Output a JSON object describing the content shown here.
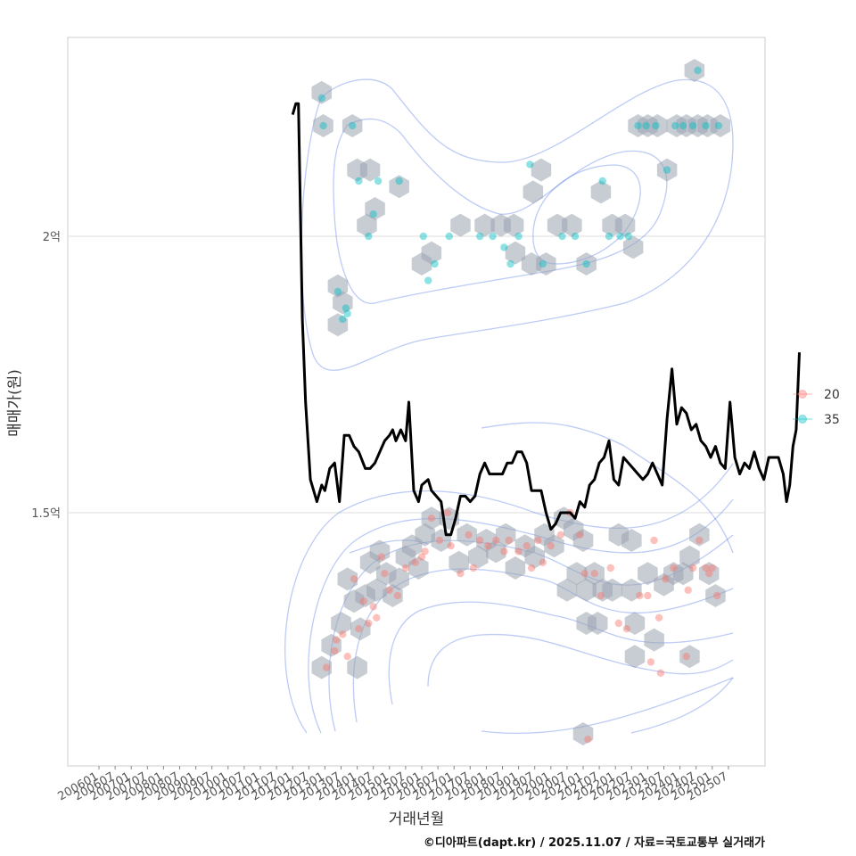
{
  "caption": "©디아파트(dapt.kr) / 2025.11.07 / 자료=국토교통부 실거래가",
  "chart_data": {
    "type": "scatter",
    "xlabel": "거래년월",
    "ylabel": "매매가(원)",
    "grid": true,
    "legend_position": "right",
    "x_categories": [
      "200601",
      "200607",
      "200701",
      "200707",
      "200801",
      "200807",
      "200901",
      "200907",
      "201001",
      "201007",
      "201101",
      "201107",
      "201201",
      "201207",
      "201301",
      "201307",
      "201401",
      "201407",
      "201501",
      "201507",
      "201601",
      "201607",
      "201701",
      "201707",
      "201801",
      "201807",
      "201901",
      "201907",
      "202001",
      "202007",
      "202101",
      "202107",
      "202201",
      "202207",
      "202301",
      "202307",
      "202401",
      "202407",
      "202501",
      "202507"
    ],
    "y_ticks": [
      {
        "value": 1.5,
        "label": "1.5억"
      },
      {
        "value": 2.0,
        "label": "2억"
      }
    ],
    "ylim": [
      1.06,
      2.38
    ],
    "legend": [
      {
        "name": "20",
        "color": "#F8766D"
      },
      {
        "name": "35",
        "color": "#00BFC4"
      }
    ],
    "series": [
      {
        "name": "20",
        "color": "#F8766D",
        "points": [
          [
            2013.05,
            1.22
          ],
          [
            2013.3,
            1.25
          ],
          [
            2013.35,
            1.27
          ],
          [
            2013.55,
            1.28
          ],
          [
            2013.7,
            1.24
          ],
          [
            2013.9,
            1.38
          ],
          [
            2014.05,
            1.29
          ],
          [
            2014.2,
            1.34
          ],
          [
            2014.35,
            1.3
          ],
          [
            2014.5,
            1.33
          ],
          [
            2014.6,
            1.31
          ],
          [
            2014.75,
            1.42
          ],
          [
            2014.85,
            1.39
          ],
          [
            2015.0,
            1.36
          ],
          [
            2015.25,
            1.35
          ],
          [
            2015.5,
            1.4
          ],
          [
            2015.8,
            1.41
          ],
          [
            2016.0,
            1.42
          ],
          [
            2016.1,
            1.43
          ],
          [
            2016.3,
            1.49
          ],
          [
            2016.55,
            1.45
          ],
          [
            2016.8,
            1.5
          ],
          [
            2016.9,
            1.44
          ],
          [
            2017.2,
            1.39
          ],
          [
            2017.45,
            1.46
          ],
          [
            2017.6,
            1.4
          ],
          [
            2017.8,
            1.45
          ],
          [
            2018.05,
            1.44
          ],
          [
            2018.3,
            1.45
          ],
          [
            2018.55,
            1.43
          ],
          [
            2018.7,
            1.45
          ],
          [
            2019.0,
            1.43
          ],
          [
            2019.25,
            1.44
          ],
          [
            2019.4,
            1.4
          ],
          [
            2019.6,
            1.45
          ],
          [
            2019.75,
            1.41
          ],
          [
            2020.0,
            1.44
          ],
          [
            2020.3,
            1.46
          ],
          [
            2020.6,
            1.5
          ],
          [
            2020.9,
            1.46
          ],
          [
            2021.05,
            1.39
          ],
          [
            2021.35,
            1.39
          ],
          [
            2021.55,
            1.35
          ],
          [
            2021.85,
            1.4
          ],
          [
            2022.1,
            1.3
          ],
          [
            2022.35,
            1.29
          ],
          [
            2022.75,
            1.35
          ],
          [
            2023.0,
            1.35
          ],
          [
            2023.2,
            1.45
          ],
          [
            2023.35,
            1.31
          ],
          [
            2023.55,
            1.38
          ],
          [
            2023.8,
            1.4
          ],
          [
            2024.25,
            1.36
          ],
          [
            2024.4,
            1.4
          ],
          [
            2024.6,
            1.45
          ],
          [
            2024.8,
            1.4
          ],
          [
            2025.0,
            1.4
          ],
          [
            2025.15,
            1.35
          ],
          [
            2021.15,
            1.09
          ],
          [
            2023.1,
            1.23
          ],
          [
            2023.4,
            1.21
          ],
          [
            2024.2,
            1.24
          ],
          [
            2024.9,
            1.39
          ]
        ]
      },
      {
        "name": "35",
        "color": "#00BFC4",
        "points": [
          [
            2012.9,
            2.25
          ],
          [
            2012.95,
            2.2
          ],
          [
            2013.4,
            1.9
          ],
          [
            2013.55,
            1.85
          ],
          [
            2013.65,
            1.87
          ],
          [
            2013.7,
            1.86
          ],
          [
            2013.85,
            2.2
          ],
          [
            2014.05,
            2.1
          ],
          [
            2014.35,
            2.0
          ],
          [
            2014.5,
            2.04
          ],
          [
            2014.65,
            2.1
          ],
          [
            2015.3,
            2.1
          ],
          [
            2016.05,
            2.0
          ],
          [
            2016.2,
            1.92
          ],
          [
            2016.4,
            1.95
          ],
          [
            2016.85,
            2.0
          ],
          [
            2017.8,
            2.0
          ],
          [
            2018.2,
            2.0
          ],
          [
            2018.55,
            1.98
          ],
          [
            2018.75,
            1.95
          ],
          [
            2019.0,
            2.0
          ],
          [
            2019.35,
            2.13
          ],
          [
            2019.75,
            1.95
          ],
          [
            2020.35,
            2.0
          ],
          [
            2020.75,
            2.0
          ],
          [
            2021.1,
            1.95
          ],
          [
            2021.6,
            2.1
          ],
          [
            2021.8,
            2.0
          ],
          [
            2022.15,
            2.0
          ],
          [
            2022.4,
            2.0
          ],
          [
            2022.7,
            2.2
          ],
          [
            2022.95,
            2.2
          ],
          [
            2023.25,
            2.2
          ],
          [
            2023.6,
            2.12
          ],
          [
            2023.85,
            2.2
          ],
          [
            2024.1,
            2.2
          ],
          [
            2024.4,
            2.2
          ],
          [
            2024.55,
            2.3
          ],
          [
            2024.8,
            2.2
          ],
          [
            2025.2,
            2.2
          ]
        ]
      }
    ],
    "hexbins": [
      [
        2012.9,
        1.22
      ],
      [
        2013.2,
        1.26
      ],
      [
        2013.5,
        1.3
      ],
      [
        2013.7,
        1.38
      ],
      [
        2013.9,
        1.34
      ],
      [
        2014.1,
        1.29
      ],
      [
        2014.0,
        1.22
      ],
      [
        2014.25,
        1.35
      ],
      [
        2014.4,
        1.41
      ],
      [
        2014.7,
        1.43
      ],
      [
        2014.6,
        1.36
      ],
      [
        2014.9,
        1.39
      ],
      [
        2015.1,
        1.35
      ],
      [
        2015.3,
        1.38
      ],
      [
        2015.5,
        1.42
      ],
      [
        2015.7,
        1.44
      ],
      [
        2015.9,
        1.4
      ],
      [
        2016.1,
        1.46
      ],
      [
        2016.3,
        1.49
      ],
      [
        2016.6,
        1.45
      ],
      [
        2016.85,
        1.49
      ],
      [
        2017.15,
        1.41
      ],
      [
        2017.4,
        1.46
      ],
      [
        2017.75,
        1.42
      ],
      [
        2018.0,
        1.45
      ],
      [
        2018.3,
        1.43
      ],
      [
        2018.6,
        1.46
      ],
      [
        2018.9,
        1.4
      ],
      [
        2019.2,
        1.44
      ],
      [
        2019.5,
        1.42
      ],
      [
        2019.8,
        1.46
      ],
      [
        2020.1,
        1.44
      ],
      [
        2020.4,
        1.49
      ],
      [
        2020.7,
        1.47
      ],
      [
        2020.5,
        1.36
      ],
      [
        2021.0,
        1.45
      ],
      [
        2020.8,
        1.39
      ],
      [
        2021.1,
        1.36
      ],
      [
        2021.35,
        1.39
      ],
      [
        2021.6,
        1.36
      ],
      [
        2021.1,
        1.3
      ],
      [
        2021.45,
        1.3
      ],
      [
        2022.1,
        1.46
      ],
      [
        2021.9,
        1.36
      ],
      [
        2022.5,
        1.45
      ],
      [
        2022.5,
        1.36
      ],
      [
        2022.6,
        1.3
      ],
      [
        2022.6,
        1.24
      ],
      [
        2023.0,
        1.39
      ],
      [
        2023.2,
        1.27
      ],
      [
        2023.5,
        1.37
      ],
      [
        2023.8,
        1.39
      ],
      [
        2024.1,
        1.39
      ],
      [
        2024.3,
        1.42
      ],
      [
        2024.6,
        1.46
      ],
      [
        2024.9,
        1.39
      ],
      [
        2025.1,
        1.35
      ],
      [
        2024.3,
        1.24
      ],
      [
        2021.0,
        1.1
      ],
      [
        2012.9,
        2.26
      ],
      [
        2012.95,
        2.2
      ],
      [
        2013.4,
        1.91
      ],
      [
        2013.55,
        1.88
      ],
      [
        2013.4,
        1.84
      ],
      [
        2013.85,
        2.2
      ],
      [
        2014.0,
        2.12
      ],
      [
        2014.4,
        2.12
      ],
      [
        2014.55,
        2.05
      ],
      [
        2014.3,
        2.02
      ],
      [
        2015.3,
        2.09
      ],
      [
        2016.0,
        1.95
      ],
      [
        2016.3,
        1.97
      ],
      [
        2017.2,
        2.02
      ],
      [
        2017.95,
        2.02
      ],
      [
        2018.45,
        2.02
      ],
      [
        2018.85,
        2.02
      ],
      [
        2018.9,
        1.97
      ],
      [
        2019.4,
        1.95
      ],
      [
        2019.85,
        1.95
      ],
      [
        2019.45,
        2.08
      ],
      [
        2019.7,
        2.12
      ],
      [
        2020.2,
        2.02
      ],
      [
        2020.65,
        2.02
      ],
      [
        2021.1,
        1.95
      ],
      [
        2021.55,
        2.08
      ],
      [
        2021.9,
        2.02
      ],
      [
        2022.3,
        2.02
      ],
      [
        2022.55,
        1.98
      ],
      [
        2022.7,
        2.2
      ],
      [
        2023.0,
        2.2
      ],
      [
        2023.3,
        2.2
      ],
      [
        2023.6,
        2.12
      ],
      [
        2023.9,
        2.2
      ],
      [
        2024.2,
        2.2
      ],
      [
        2024.45,
        2.3
      ],
      [
        2024.55,
        2.2
      ],
      [
        2024.85,
        2.2
      ],
      [
        2025.25,
        2.2
      ]
    ],
    "median_line": [
      [
        2012.0,
        2.22
      ],
      [
        2012.1,
        2.24
      ],
      [
        2012.18,
        2.24
      ],
      [
        2012.3,
        1.85
      ],
      [
        2012.4,
        1.7
      ],
      [
        2012.55,
        1.56
      ],
      [
        2012.75,
        1.52
      ],
      [
        2012.9,
        1.55
      ],
      [
        2013.0,
        1.54
      ],
      [
        2013.15,
        1.58
      ],
      [
        2013.3,
        1.59
      ],
      [
        2013.45,
        1.52
      ],
      [
        2013.6,
        1.64
      ],
      [
        2013.75,
        1.64
      ],
      [
        2013.9,
        1.62
      ],
      [
        2014.05,
        1.61
      ],
      [
        2014.25,
        1.58
      ],
      [
        2014.4,
        1.58
      ],
      [
        2014.55,
        1.59
      ],
      [
        2014.7,
        1.61
      ],
      [
        2014.85,
        1.63
      ],
      [
        2015.0,
        1.64
      ],
      [
        2015.1,
        1.65
      ],
      [
        2015.2,
        1.63
      ],
      [
        2015.35,
        1.65
      ],
      [
        2015.5,
        1.63
      ],
      [
        2015.6,
        1.7
      ],
      [
        2015.75,
        1.54
      ],
      [
        2015.9,
        1.52
      ],
      [
        2016.0,
        1.55
      ],
      [
        2016.2,
        1.56
      ],
      [
        2016.3,
        1.54
      ],
      [
        2016.45,
        1.53
      ],
      [
        2016.6,
        1.52
      ],
      [
        2016.75,
        1.46
      ],
      [
        2016.9,
        1.46
      ],
      [
        2017.05,
        1.49
      ],
      [
        2017.2,
        1.53
      ],
      [
        2017.35,
        1.53
      ],
      [
        2017.5,
        1.52
      ],
      [
        2017.65,
        1.53
      ],
      [
        2017.8,
        1.57
      ],
      [
        2017.95,
        1.59
      ],
      [
        2018.1,
        1.57
      ],
      [
        2018.3,
        1.57
      ],
      [
        2018.5,
        1.57
      ],
      [
        2018.65,
        1.59
      ],
      [
        2018.8,
        1.59
      ],
      [
        2018.95,
        1.61
      ],
      [
        2019.1,
        1.61
      ],
      [
        2019.25,
        1.59
      ],
      [
        2019.4,
        1.54
      ],
      [
        2019.55,
        1.54
      ],
      [
        2019.7,
        1.54
      ],
      [
        2019.85,
        1.5
      ],
      [
        2020.0,
        1.47
      ],
      [
        2020.15,
        1.48
      ],
      [
        2020.3,
        1.5
      ],
      [
        2020.45,
        1.5
      ],
      [
        2020.6,
        1.5
      ],
      [
        2020.75,
        1.49
      ],
      [
        2020.9,
        1.52
      ],
      [
        2021.05,
        1.51
      ],
      [
        2021.2,
        1.55
      ],
      [
        2021.35,
        1.56
      ],
      [
        2021.5,
        1.59
      ],
      [
        2021.65,
        1.6
      ],
      [
        2021.8,
        1.63
      ],
      [
        2021.95,
        1.56
      ],
      [
        2022.1,
        1.55
      ],
      [
        2022.25,
        1.6
      ],
      [
        2022.4,
        1.59
      ],
      [
        2022.55,
        1.58
      ],
      [
        2022.7,
        1.57
      ],
      [
        2022.85,
        1.56
      ],
      [
        2023.0,
        1.57
      ],
      [
        2023.15,
        1.59
      ],
      [
        2023.3,
        1.57
      ],
      [
        2023.45,
        1.55
      ],
      [
        2023.6,
        1.67
      ],
      [
        2023.75,
        1.76
      ],
      [
        2023.9,
        1.66
      ],
      [
        2024.05,
        1.69
      ],
      [
        2024.2,
        1.68
      ],
      [
        2024.35,
        1.65
      ],
      [
        2024.5,
        1.66
      ],
      [
        2024.65,
        1.63
      ],
      [
        2024.8,
        1.62
      ],
      [
        2024.95,
        1.6
      ],
      [
        2025.1,
        1.62
      ],
      [
        2025.25,
        1.59
      ],
      [
        2025.4,
        1.58
      ],
      [
        2025.55,
        1.7
      ],
      [
        2025.7,
        1.6
      ],
      [
        2025.85,
        1.57
      ],
      [
        2026.0,
        1.59
      ],
      [
        2026.15,
        1.58
      ],
      [
        2026.3,
        1.61
      ],
      [
        2026.45,
        1.58
      ],
      [
        2026.6,
        1.56
      ],
      [
        2026.75,
        1.6
      ],
      [
        2026.9,
        1.6
      ],
      [
        2027.05,
        1.6
      ],
      [
        2027.2,
        1.57
      ],
      [
        2027.3,
        1.52
      ],
      [
        2027.4,
        1.55
      ],
      [
        2027.5,
        1.62
      ],
      [
        2027.6,
        1.65
      ],
      [
        2027.7,
        1.79
      ]
    ]
  }
}
